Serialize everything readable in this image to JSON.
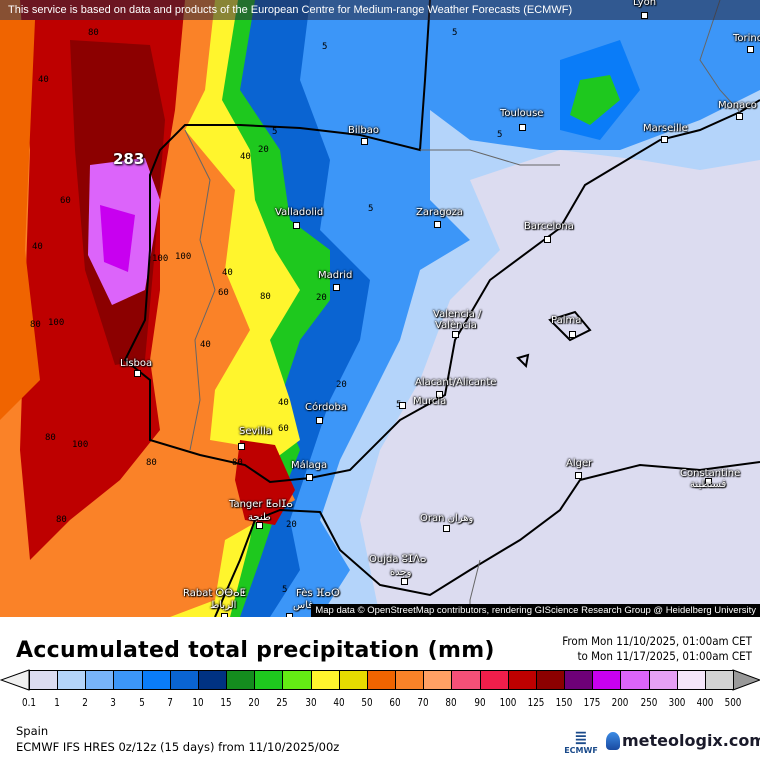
{
  "map": {
    "banner": "This service is based on data and products of the European Centre for Medium-range Weather Forecasts (ECMWF)",
    "attribution": "Map data © OpenStreetMap contributors, rendering GIScience Research Group @ Heidelberg University",
    "max_value": "283",
    "cities": [
      {
        "name": "Lyon"
      },
      {
        "name": "Torino"
      },
      {
        "name": "Monaco"
      },
      {
        "name": "Toulouse"
      },
      {
        "name": "Marseille"
      },
      {
        "name": "Bilbao"
      },
      {
        "name": "Zaragoza"
      },
      {
        "name": "Barcelona"
      },
      {
        "name": "Valladolid"
      },
      {
        "name": "Madrid"
      },
      {
        "name": "Valencia /",
        "name2": "València"
      },
      {
        "name": "Palma"
      },
      {
        "name": "Lisboa"
      },
      {
        "name": "Alacant/Alicante"
      },
      {
        "name": "Murcia"
      },
      {
        "name": "Córdoba"
      },
      {
        "name": "Sevilla"
      },
      {
        "name": "Málaga"
      },
      {
        "name": "Alger"
      },
      {
        "name": "Constantine",
        "name2": "قسنطينة"
      },
      {
        "name": "Tanger ⵟⴰⵏⵊⴰ",
        "name2": "طنجة"
      },
      {
        "name": "Oran وهران"
      },
      {
        "name": "Oujda ⵓⵊⴷⴰ",
        "name2": "وجدة"
      },
      {
        "name": "Rabat ⵔⴱⴰⵟ",
        "name2": "الرباط"
      },
      {
        "name": "Fès ⴼⴰⵙ",
        "name2": "فاس"
      }
    ],
    "contour_labels": [
      "80",
      "40",
      "40",
      "60",
      "80",
      "80",
      "100",
      "100",
      "80",
      "80",
      "80",
      "100",
      "60",
      "40",
      "20",
      "5",
      "5",
      "5",
      "5",
      "5",
      "20",
      "20",
      "40",
      "40",
      "60",
      "100",
      "20",
      "5",
      "5",
      "40",
      "80"
    ]
  },
  "legend": {
    "title": "Accumulated total precipitation (mm)",
    "from": "From Mon 11/10/2025, 01:00am CET",
    "to": "to Mon 11/17/2025, 01:00am CET",
    "ticks": [
      "0.1",
      "1",
      "2",
      "3",
      "5",
      "7",
      "10",
      "15",
      "20",
      "25",
      "30",
      "40",
      "50",
      "60",
      "70",
      "80",
      "90",
      "100",
      "125",
      "150",
      "175",
      "200",
      "250",
      "300",
      "400",
      "500"
    ],
    "colors": [
      "#dcdcf0",
      "#b4d4fa",
      "#78b4fa",
      "#3c96f8",
      "#0a7cf8",
      "#0a64d2",
      "#003282",
      "#148c1e",
      "#1ec81e",
      "#64ec14",
      "#fff52d",
      "#e6dc00",
      "#f06400",
      "#fa8228",
      "#ffa064",
      "#f55078",
      "#f01e4b",
      "#be0000",
      "#8c0000",
      "#6e0078",
      "#c800f0",
      "#dc64fa",
      "#e6a0f5",
      "#f5e6fa",
      "#d2d2d2"
    ],
    "under_color": "#f0f0f0",
    "over_color": "#999999"
  },
  "footer": {
    "region": "Spain",
    "model": "ECMWF IFS HRES 0z/12z (15 days) from  11/10/2025/00z",
    "ecmwf_logo": "ECMWF",
    "brand": "meteologix.com"
  }
}
